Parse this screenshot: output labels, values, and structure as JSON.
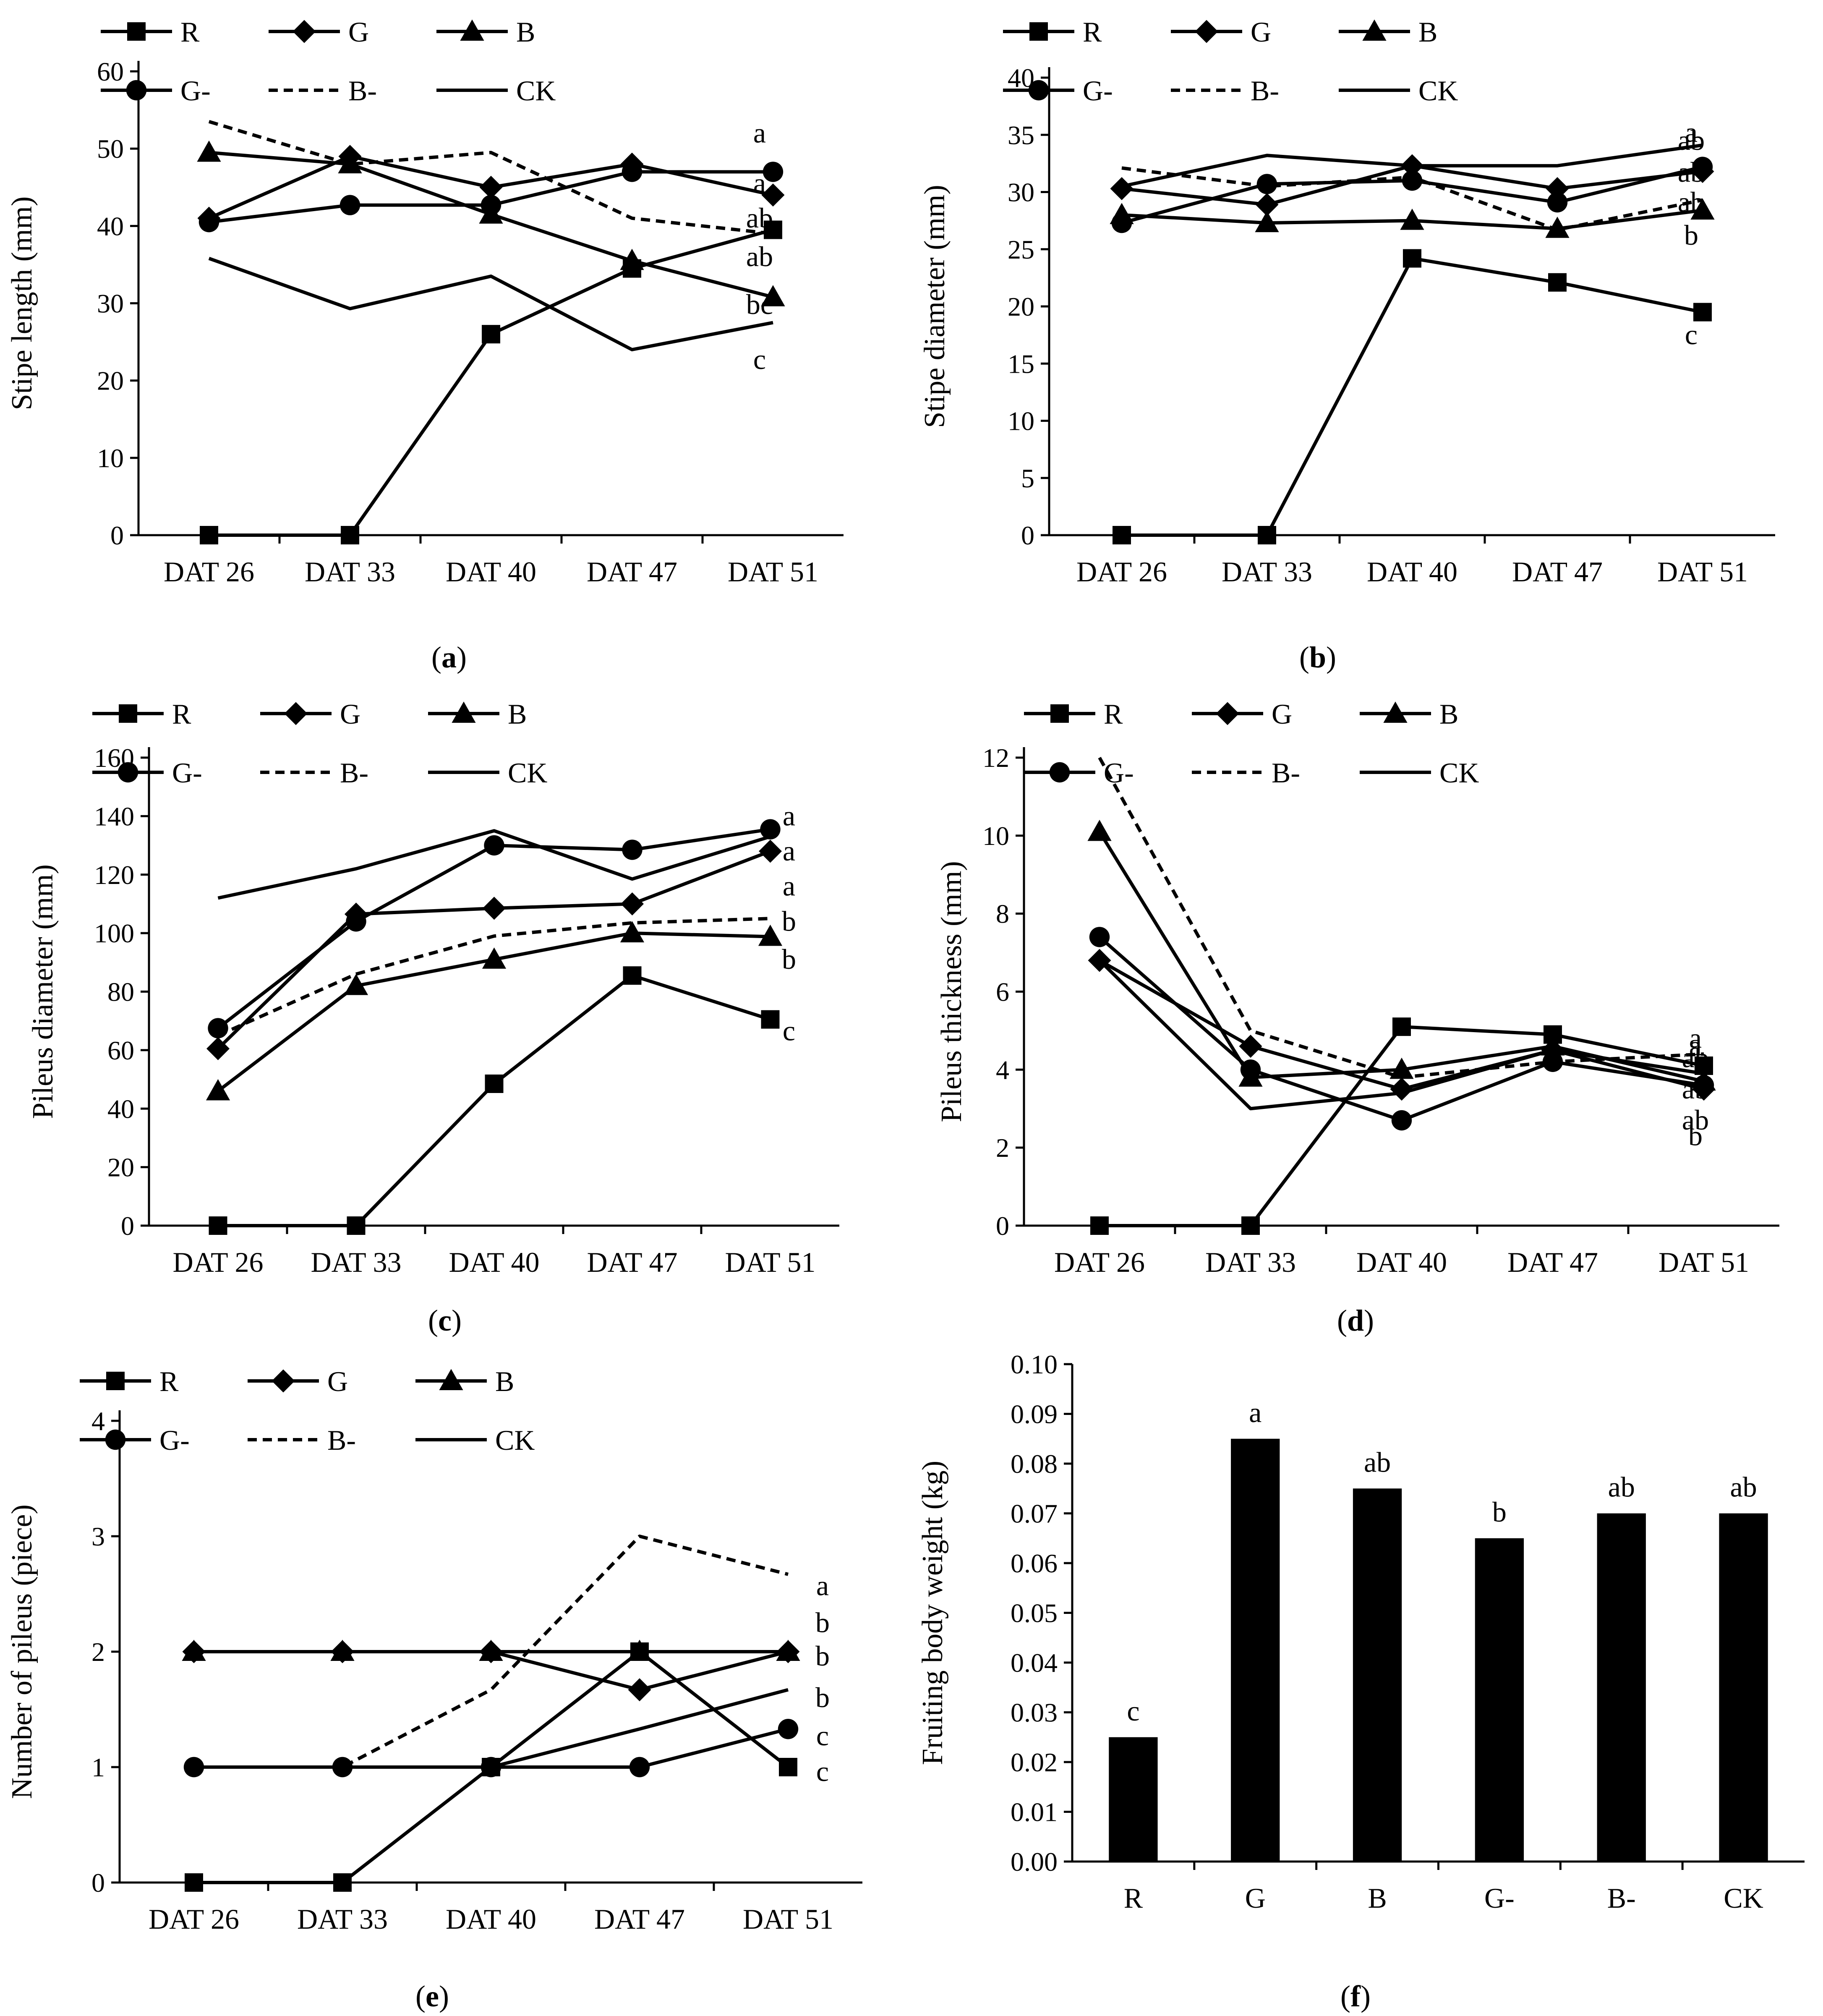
{
  "chart_data": [
    {
      "type": "line",
      "caption_prefix": "(",
      "caption": "a",
      "caption_suffix": ")",
      "ylabel": "Stipe length (mm)",
      "categories": [
        "DAT 26",
        "DAT 33",
        "DAT 40",
        "DAT 47",
        "DAT 51"
      ],
      "ylim": [
        0,
        60
      ],
      "yticks": [
        0,
        10,
        20,
        30,
        40,
        50,
        60
      ],
      "series": [
        {
          "name": "R",
          "marker": "square",
          "dash": false,
          "values": [
            0,
            0,
            26,
            34.5,
            39.5
          ]
        },
        {
          "name": "G",
          "marker": "diamond",
          "dash": false,
          "values": [
            41,
            49,
            45,
            48,
            44
          ]
        },
        {
          "name": "B",
          "marker": "triangle",
          "dash": false,
          "values": [
            49.5,
            48,
            41.5,
            35.5,
            30.8
          ]
        },
        {
          "name": "G-",
          "marker": "circle",
          "dash": false,
          "values": [
            40.5,
            42.7,
            42.7,
            47,
            47
          ]
        },
        {
          "name": "B-",
          "marker": "none",
          "dash": true,
          "values": [
            53.5,
            48,
            49.5,
            41,
            39
          ]
        },
        {
          "name": "CK",
          "marker": "none",
          "dash": false,
          "values": [
            35.8,
            29.3,
            33.5,
            24,
            27.5
          ]
        }
      ],
      "sig_letters": [
        {
          "text": "a",
          "value": 52
        },
        {
          "text": "a",
          "value": 45.5
        },
        {
          "text": "ab",
          "value": 41
        },
        {
          "text": "ab",
          "value": 36
        },
        {
          "text": "bc",
          "value": 29.8
        },
        {
          "text": "c",
          "value": 22.7
        }
      ]
    },
    {
      "type": "line",
      "caption_prefix": "(",
      "caption": "b",
      "caption_suffix": ")",
      "ylabel": "Stipe diameter (mm)",
      "categories": [
        "DAT 26",
        "DAT 33",
        "DAT 40",
        "DAT 47",
        "DAT 51"
      ],
      "ylim": [
        0,
        40
      ],
      "yticks": [
        0,
        5,
        10,
        15,
        20,
        25,
        30,
        35,
        40
      ],
      "series": [
        {
          "name": "R",
          "marker": "square",
          "dash": false,
          "values": [
            0,
            0,
            24.2,
            22.1,
            19.5
          ]
        },
        {
          "name": "G",
          "marker": "diamond",
          "dash": false,
          "values": [
            30.3,
            28.9,
            32.3,
            30.3,
            31.8
          ]
        },
        {
          "name": "B",
          "marker": "triangle",
          "dash": false,
          "values": [
            28,
            27.3,
            27.5,
            26.8,
            28.4
          ]
        },
        {
          "name": "G-",
          "marker": "circle",
          "dash": false,
          "values": [
            27.3,
            30.7,
            31,
            29.1,
            32.2
          ]
        },
        {
          "name": "B-",
          "marker": "none",
          "dash": true,
          "values": [
            32.1,
            30.5,
            31.3,
            26.7,
            29.3
          ]
        },
        {
          "name": "CK",
          "marker": "none",
          "dash": false,
          "values": [
            30.5,
            33.2,
            32.3,
            32.3,
            34.1
          ]
        }
      ],
      "sig_letters": [
        {
          "text": "a",
          "value": 35.2
        },
        {
          "text": "ab",
          "value": 34.5
        },
        {
          "text": "ab",
          "value": 31.7
        },
        {
          "text": "ab",
          "value": 29.1
        },
        {
          "text": "b",
          "value": 26.2
        },
        {
          "text": "c",
          "value": 17.5
        }
      ]
    },
    {
      "type": "line",
      "caption_prefix": "(",
      "caption": "c",
      "caption_suffix": ")",
      "ylabel": "Pileus diameter (mm)",
      "categories": [
        "DAT 26",
        "DAT 33",
        "DAT 40",
        "DAT 47",
        "DAT 51"
      ],
      "ylim": [
        0,
        160
      ],
      "yticks": [
        0,
        20,
        40,
        60,
        80,
        100,
        120,
        140,
        160
      ],
      "series": [
        {
          "name": "R",
          "marker": "square",
          "dash": false,
          "values": [
            0,
            0,
            48.5,
            85.5,
            70.5
          ]
        },
        {
          "name": "G",
          "marker": "diamond",
          "dash": false,
          "values": [
            60.5,
            106.5,
            108.5,
            110,
            128
          ]
        },
        {
          "name": "B",
          "marker": "triangle",
          "dash": false,
          "values": [
            46,
            82,
            91,
            100,
            98.8
          ]
        },
        {
          "name": "G-",
          "marker": "circle",
          "dash": false,
          "values": [
            67.5,
            104,
            130,
            128.5,
            135.5
          ]
        },
        {
          "name": "B-",
          "marker": "none",
          "dash": true,
          "values": [
            65,
            86,
            99,
            103.5,
            105
          ]
        },
        {
          "name": "CK",
          "marker": "none",
          "dash": false,
          "values": [
            112,
            122,
            135,
            118.5,
            133
          ]
        }
      ],
      "sig_letters": [
        {
          "text": "a",
          "value": 140
        },
        {
          "text": "a",
          "value": 128
        },
        {
          "text": "a",
          "value": 116
        },
        {
          "text": "b",
          "value": 104
        },
        {
          "text": "b",
          "value": 91
        },
        {
          "text": "c",
          "value": 66.5
        }
      ]
    },
    {
      "type": "line",
      "caption_prefix": "(",
      "caption": "d",
      "caption_suffix": ")",
      "ylabel": "Pileus thickness (mm)",
      "categories": [
        "DAT 26",
        "DAT 33",
        "DAT 40",
        "DAT 47",
        "DAT 51"
      ],
      "ylim": [
        0,
        12
      ],
      "yticks": [
        0,
        2,
        4,
        6,
        8,
        10,
        12
      ],
      "series": [
        {
          "name": "R",
          "marker": "square",
          "dash": false,
          "values": [
            0,
            0,
            5.1,
            4.9,
            4.1
          ]
        },
        {
          "name": "G",
          "marker": "diamond",
          "dash": false,
          "values": [
            6.8,
            4.6,
            3.5,
            4.5,
            3.5
          ]
        },
        {
          "name": "B",
          "marker": "triangle",
          "dash": false,
          "values": [
            10.1,
            3.8,
            4.0,
            4.6,
            3.7
          ]
        },
        {
          "name": "G-",
          "marker": "circle",
          "dash": false,
          "values": [
            7.4,
            4.0,
            2.7,
            4.2,
            3.6
          ]
        },
        {
          "name": "B-",
          "marker": "none",
          "dash": true,
          "values": [
            12,
            5.0,
            3.8,
            4.2,
            4.4
          ]
        },
        {
          "name": "CK",
          "marker": "none",
          "dash": false,
          "values": [
            6.8,
            3.0,
            3.4,
            4.5,
            3.9
          ]
        }
      ],
      "sig_letters": [
        {
          "text": "a",
          "value": 4.6
        },
        {
          "text": "a",
          "value": 4.8
        },
        {
          "text": "ab",
          "value": 4.3
        },
        {
          "text": "ab",
          "value": 3.5
        },
        {
          "text": "ab",
          "value": 2.7
        },
        {
          "text": "b",
          "value": 2.3
        }
      ]
    },
    {
      "type": "line",
      "caption_prefix": "(",
      "caption": "e",
      "caption_suffix": ")",
      "ylabel": "Number of pileus (piece)",
      "categories": [
        "DAT 26",
        "DAT 33",
        "DAT 40",
        "DAT 47",
        "DAT 51"
      ],
      "ylim": [
        0,
        4
      ],
      "yticks": [
        0,
        1,
        2,
        3,
        4
      ],
      "series": [
        {
          "name": "R",
          "marker": "square",
          "dash": false,
          "values": [
            0,
            0,
            1,
            2,
            1
          ]
        },
        {
          "name": "G",
          "marker": "diamond",
          "dash": false,
          "values": [
            2,
            2,
            2,
            1.67,
            2
          ]
        },
        {
          "name": "B",
          "marker": "triangle",
          "dash": false,
          "values": [
            2,
            2,
            2,
            2,
            2
          ]
        },
        {
          "name": "G-",
          "marker": "circle",
          "dash": false,
          "values": [
            1,
            1,
            1,
            1,
            1.33
          ]
        },
        {
          "name": "B-",
          "marker": "none",
          "dash": true,
          "values": [
            1,
            1,
            1.67,
            3,
            2.67
          ]
        },
        {
          "name": "CK",
          "marker": "none",
          "dash": false,
          "values": [
            1,
            1,
            1,
            1.33,
            1.67
          ]
        }
      ],
      "sig_letters": [
        {
          "text": "a",
          "value": 2.57
        },
        {
          "text": "b",
          "value": 2.25
        },
        {
          "text": "b",
          "value": 1.96
        },
        {
          "text": "b",
          "value": 1.6
        },
        {
          "text": "c",
          "value": 1.27
        },
        {
          "text": "c",
          "value": 0.96
        }
      ]
    },
    {
      "type": "bar",
      "caption_prefix": "(",
      "caption": "f",
      "caption_suffix": ")",
      "ylabel": "Fruiting body weight (kg)",
      "categories": [
        "R",
        "G",
        "B",
        "G-",
        "B-",
        "CK"
      ],
      "values": [
        0.025,
        0.085,
        0.075,
        0.065,
        0.07,
        0.07
      ],
      "letters": [
        "c",
        "a",
        "ab",
        "b",
        "ab",
        "ab"
      ],
      "ylim": [
        0,
        0.1
      ],
      "yticks": [
        "0.00",
        "0.01",
        "0.02",
        "0.03",
        "0.04",
        "0.05",
        "0.06",
        "0.07",
        "0.08",
        "0.09",
        "0.10"
      ]
    }
  ]
}
